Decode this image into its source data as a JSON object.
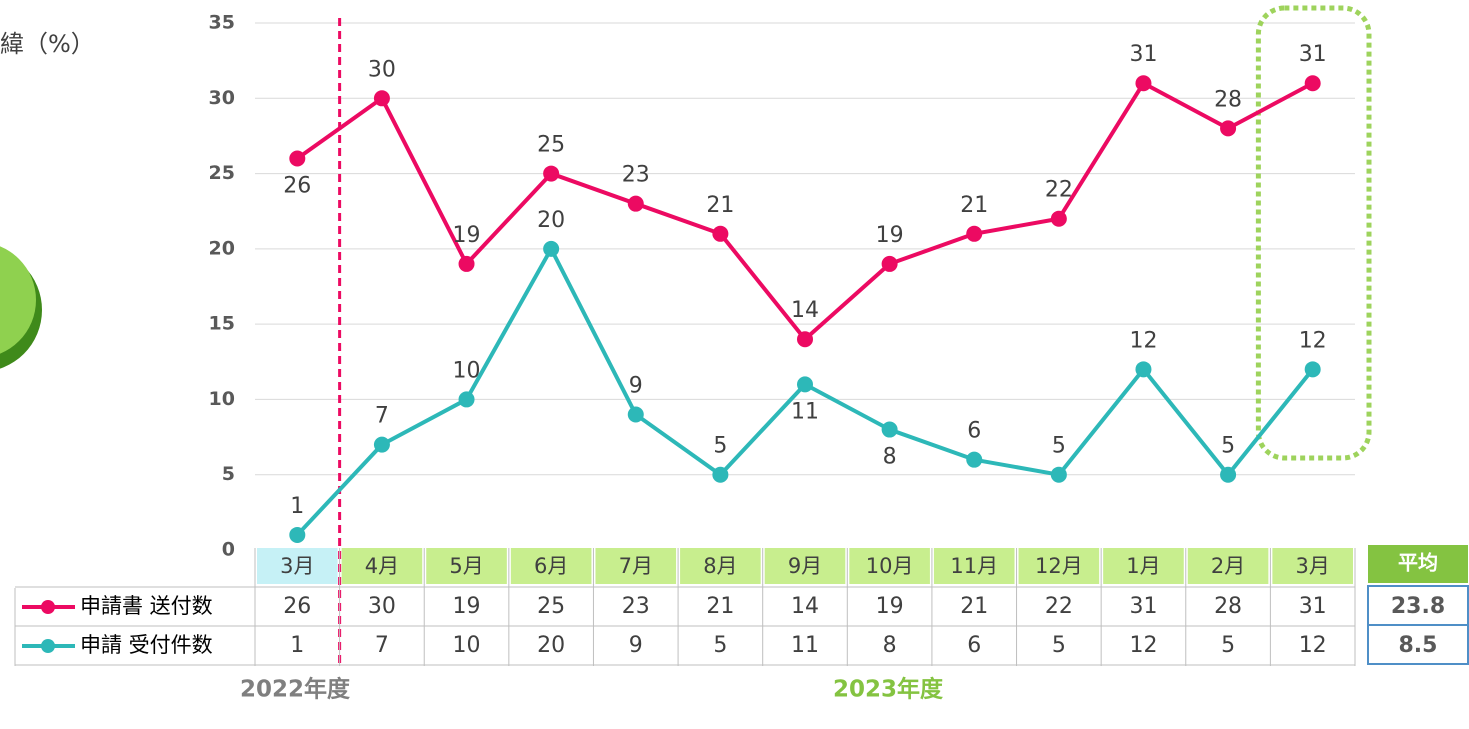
{
  "chart_data": {
    "type": "line",
    "axis_label": "緯（%）",
    "categories": [
      "3月",
      "4月",
      "5月",
      "6月",
      "7月",
      "8月",
      "9月",
      "10月",
      "11月",
      "12月",
      "1月",
      "2月",
      "3月"
    ],
    "series": [
      {
        "name": "申請書 送付数",
        "color": "#ec0a62",
        "values": [
          26,
          30,
          19,
          25,
          23,
          21,
          14,
          19,
          21,
          22,
          31,
          28,
          31
        ]
      },
      {
        "name": "申請 受付件数",
        "color": "#2db8b8",
        "values": [
          1,
          7,
          10,
          20,
          9,
          5,
          11,
          8,
          6,
          5,
          12,
          5,
          12
        ]
      }
    ],
    "ylim": [
      0,
      35
    ],
    "yticks": [
      0,
      5,
      10,
      15,
      20,
      25,
      30,
      35
    ],
    "grid": true,
    "averages": {
      "title": "平均",
      "values": [
        23.8,
        8.5
      ]
    },
    "fiscal_years": [
      "2022年度",
      "2023年度"
    ]
  }
}
